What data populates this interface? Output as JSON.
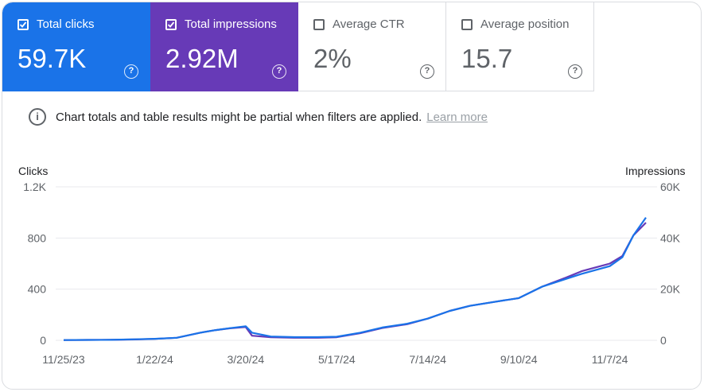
{
  "cards": [
    {
      "label": "Total clicks",
      "value": "59.7K",
      "checked": true,
      "color": "#1a73e8"
    },
    {
      "label": "Total impressions",
      "value": "2.92M",
      "checked": true,
      "color": "#673ab7"
    },
    {
      "label": "Average CTR",
      "value": "2%",
      "checked": false,
      "color": "#ffffff"
    },
    {
      "label": "Average position",
      "value": "15.7",
      "checked": false,
      "color": "#ffffff"
    }
  ],
  "notice": {
    "text": "Chart totals and table results might be partial when filters are applied.",
    "link": "Learn more"
  },
  "chart_data": {
    "type": "line",
    "ylabel_left": "Clicks",
    "ylabel_right": "Impressions",
    "left_ticks": [
      "0",
      "400",
      "800",
      "1.2K"
    ],
    "right_ticks": [
      "0",
      "20K",
      "40K",
      "60K"
    ],
    "ylim_left": [
      0,
      1200
    ],
    "ylim_right": [
      0,
      60000
    ],
    "x_ticks": [
      "11/25/23",
      "1/22/24",
      "3/20/24",
      "5/17/24",
      "7/14/24",
      "9/10/24",
      "11/7/24"
    ],
    "x_range": [
      "11/25/23",
      "11/30/24"
    ],
    "grid": true,
    "series": [
      {
        "name": "Clicks",
        "axis": "left",
        "color": "#1a73e8",
        "x": [
          "11/25/23",
          "12/10/23",
          "12/25/23",
          "1/10/24",
          "1/22/24",
          "2/5/24",
          "2/20/24",
          "3/1/24",
          "3/10/24",
          "3/20/24",
          "3/24/24",
          "4/5/24",
          "4/20/24",
          "5/5/24",
          "5/17/24",
          "6/1/24",
          "6/15/24",
          "7/1/24",
          "7/14/24",
          "7/28/24",
          "8/10/24",
          "8/25/24",
          "9/10/24",
          "9/25/24",
          "10/10/24",
          "10/20/24",
          "11/1/24",
          "11/7/24",
          "11/15/24",
          "11/22/24",
          "11/30/24"
        ],
        "y": [
          2,
          3,
          4,
          8,
          12,
          20,
          60,
          80,
          95,
          110,
          60,
          30,
          25,
          25,
          28,
          60,
          100,
          130,
          170,
          230,
          270,
          300,
          330,
          420,
          480,
          520,
          560,
          580,
          650,
          820,
          960
        ]
      },
      {
        "name": "Impressions",
        "axis": "right",
        "color": "#673ab7",
        "x": [
          "11/25/23",
          "12/10/23",
          "12/25/23",
          "1/10/24",
          "1/22/24",
          "2/5/24",
          "2/20/24",
          "3/1/24",
          "3/10/24",
          "3/20/24",
          "3/24/24",
          "4/5/24",
          "4/20/24",
          "5/5/24",
          "5/17/24",
          "6/1/24",
          "6/15/24",
          "7/1/24",
          "7/14/24",
          "7/28/24",
          "8/10/24",
          "8/25/24",
          "9/10/24",
          "9/25/24",
          "10/10/24",
          "10/20/24",
          "11/1/24",
          "11/7/24",
          "11/15/24",
          "11/22/24",
          "11/30/24"
        ],
        "y": [
          100,
          150,
          200,
          350,
          550,
          1000,
          3000,
          4000,
          4700,
          5200,
          1800,
          1200,
          1000,
          1000,
          1200,
          2800,
          4800,
          6300,
          8500,
          11500,
          13500,
          15000,
          16500,
          21000,
          24500,
          27000,
          29000,
          30000,
          33000,
          41000,
          46000
        ]
      }
    ]
  }
}
